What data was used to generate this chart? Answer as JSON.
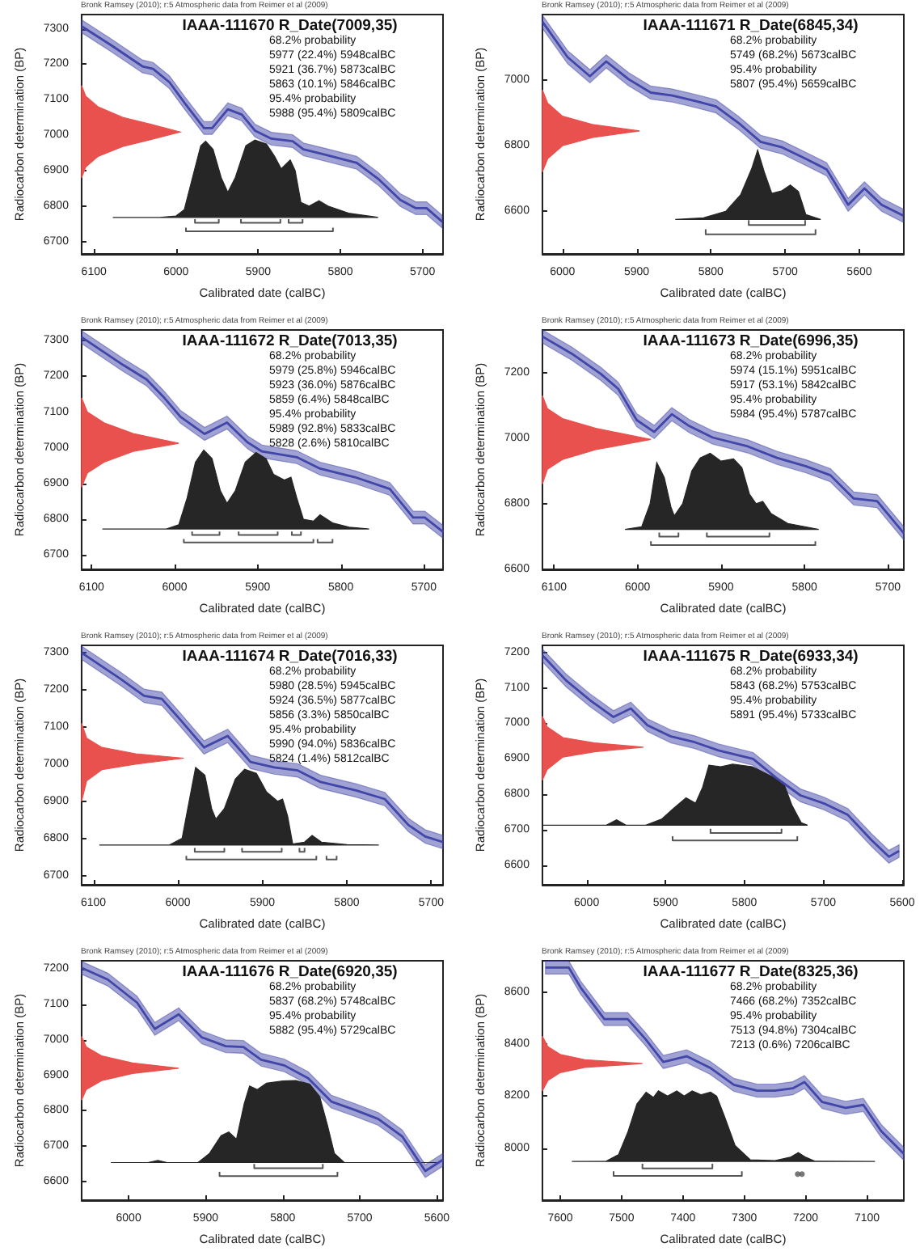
{
  "chart_data": [
    {
      "type": "line",
      "title": "IAAA-111670 R_Date(7009,35)",
      "subtitle": "Bronk Ramsey (2010); r:5 Atmospheric data from Reimer et al (2009)",
      "xlabel": "Calibrated date (calBC)",
      "ylabel": "Radiocarbon determination (BP)",
      "xlim": [
        6115,
        5675
      ],
      "ylim": [
        6665,
        7340
      ],
      "xticks": [
        6100,
        6000,
        5900,
        5800,
        5700
      ],
      "yticks": [
        6700,
        6800,
        6900,
        7000,
        7100,
        7200,
        7300
      ],
      "marker": "none",
      "annotations": [
        "68.2% probability",
        "5977 (22.4%) 5948calBC",
        "5921 (36.7%) 5873calBC",
        "5863 (10.1%) 5846calBC",
        "95.4% probability",
        "5988 (95.4%) 5809calBC"
      ],
      "series": [
        {
          "color": "#4146a8",
          "x": [
            6115,
            6080,
            6041,
            6028,
            6008,
            5989,
            5966,
            5956,
            5937,
            5920,
            5904,
            5884,
            5858,
            5845,
            5819,
            5780,
            5754,
            5727,
            5708,
            5695,
            5676
          ],
          "values": [
            7307,
            7255,
            7194,
            7187,
            7149,
            7089,
            7020,
            7020,
            7073,
            7058,
            7013,
            6990,
            6983,
            6960,
            6945,
            6922,
            6877,
            6817,
            6794,
            6794,
            6756
          ],
          "lower": [
            7289,
            7237,
            7176,
            7169,
            7131,
            7071,
            7002,
            7002,
            7055,
            7040,
            6995,
            6972,
            6965,
            6942,
            6927,
            6904,
            6859,
            6799,
            6776,
            6776,
            6738
          ],
          "upper": [
            7325,
            7273,
            7212,
            7205,
            7167,
            7107,
            7038,
            7038,
            7091,
            7076,
            7031,
            7008,
            7001,
            6978,
            6963,
            6940,
            6895,
            6835,
            6812,
            6812,
            6774
          ]
        },
        {
          "type": "area",
          "color": "#e8514e",
          "x": [
            6115,
            6110,
            6095,
            6065,
            6030,
            5995,
            6030,
            6065,
            6095,
            6110,
            6115
          ],
          "values": [
            7140,
            7110,
            7080,
            7050,
            7030,
            7009,
            6988,
            6968,
            6940,
            6910,
            6880
          ]
        },
        {
          "type": "area",
          "color": "#262626",
          "x": [
            6077,
            6020,
            6000,
            5990,
            5980,
            5970,
            5964,
            5955,
            5945,
            5937,
            5928,
            5915,
            5904,
            5890,
            5880,
            5872,
            5861,
            5855,
            5848,
            5838,
            5826,
            5815,
            5790,
            5760,
            5754
          ],
          "values": [
            6768,
            6768,
            6772,
            6790,
            6880,
            6970,
            6983,
            6960,
            6880,
            6839,
            6880,
            6970,
            6986,
            6975,
            6940,
            6905,
            6930,
            6900,
            6810,
            6800,
            6815,
            6800,
            6780,
            6770,
            6768
          ]
        },
        {
          "color": "#555555",
          "x": [
            5977,
            5977,
            5948,
            5948,
            5940,
            5921,
            5921,
            5873,
            5873,
            5868,
            5863,
            5863,
            5846,
            5846,
            5900,
            5988,
            5988,
            5809,
            5809
          ],
          "values": [
            6763,
            6753,
            6753,
            6763,
            null,
            6763,
            6753,
            6753,
            6763,
            null,
            6763,
            6753,
            6753,
            6763,
            null,
            6739,
            6729,
            6729,
            6739
          ]
        }
      ]
    },
    {
      "type": "line",
      "title": "IAAA-111671 R_Date(6845,34)",
      "subtitle": "Bronk Ramsey (2010); r:5 Atmospheric data from Reimer et al (2009)",
      "xlabel": "Calibrated date (calBC)",
      "ylabel": "Radiocarbon determination (BP)",
      "xlim": [
        6027,
        5540
      ],
      "ylim": [
        6470,
        7200
      ],
      "xticks": [
        6000,
        5900,
        5800,
        5700,
        5600
      ],
      "yticks": [
        6600,
        6800,
        7000
      ],
      "marker": "none",
      "annotations": [
        "68.2% probability",
        "5749 (68.2%) 5673calBC",
        "95.4% probability",
        "5807 (95.4%) 5659calBC"
      ],
      "series": [
        {
          "color": "#4146a8",
          "x": [
            6027,
            5993,
            5963,
            5941,
            5911,
            5881,
            5852,
            5822,
            5793,
            5763,
            5733,
            5704,
            5674,
            5644,
            5615,
            5593,
            5570,
            5541
          ],
          "values": [
            7178,
            7070,
            7012,
            7057,
            7003,
            6962,
            6953,
            6937,
            6920,
            6870,
            6812,
            6795,
            6762,
            6728,
            6620,
            6670,
            6620,
            6587
          ],
          "lower": [
            7158,
            7050,
            6992,
            7037,
            6983,
            6942,
            6933,
            6917,
            6900,
            6850,
            6792,
            6775,
            6742,
            6708,
            6600,
            6650,
            6600,
            6567
          ],
          "upper": [
            7198,
            7090,
            7032,
            7077,
            7023,
            6982,
            6973,
            6957,
            6940,
            6890,
            6832,
            6815,
            6782,
            6748,
            6640,
            6690,
            6640,
            6607
          ]
        },
        {
          "type": "area",
          "color": "#e8514e",
          "x": [
            6027,
            6020,
            6000,
            5960,
            5896,
            5960,
            6000,
            6020,
            6027
          ],
          "values": [
            6970,
            6930,
            6890,
            6865,
            6845,
            6825,
            6800,
            6760,
            6720
          ]
        },
        {
          "type": "area",
          "color": "#262626",
          "x": [
            5848,
            5810,
            5780,
            5760,
            5745,
            5737,
            5728,
            5718,
            5705,
            5693,
            5682,
            5672,
            5652
          ],
          "values": [
            6575,
            6580,
            6600,
            6650,
            6730,
            6787,
            6720,
            6655,
            6662,
            6680,
            6660,
            6590,
            6575
          ]
        },
        {
          "color": "#555555",
          "x": [
            5749,
            5749,
            5673,
            5673,
            5700,
            5807,
            5807,
            5659,
            5659
          ],
          "values": [
            6573,
            6558,
            6558,
            6573,
            null,
            6545,
            6530,
            6530,
            6545
          ]
        }
      ]
    },
    {
      "type": "line",
      "title": "IAAA-111672 R_Date(7013,35)",
      "subtitle": "Bronk Ramsey (2010); r:5 Atmospheric data from Reimer et al (2009)",
      "xlabel": "Calibrated date (calBC)",
      "ylabel": "Radiocarbon determination (BP)",
      "xlim": [
        6112,
        5677
      ],
      "ylim": [
        6660,
        7330
      ],
      "xticks": [
        6100,
        6000,
        5900,
        5800,
        5700
      ],
      "yticks": [
        6700,
        6800,
        6900,
        7000,
        7100,
        7200,
        7300
      ],
      "marker": "none",
      "annotations": [
        "68.2% probability",
        "5979 (25.8%) 5946calBC",
        "5923 (36.0%) 5876calBC",
        "5859 (6.4%) 5848calBC",
        "95.4% probability",
        "5989 (92.8%) 5833calBC",
        "5828 (2.6%) 5810calBC"
      ],
      "series": [
        {
          "color": "#4146a8",
          "x": [
            6112,
            6062,
            6034,
            6014,
            5993,
            5964,
            5937,
            5912,
            5895,
            5853,
            5825,
            5783,
            5741,
            5713,
            5699,
            5677
          ],
          "values": [
            7310,
            7232,
            7192,
            7144,
            7087,
            7039,
            7071,
            7015,
            6990,
            6974,
            6942,
            6918,
            6885,
            6805,
            6805,
            6765
          ],
          "lower": [
            7292,
            7214,
            7174,
            7126,
            7069,
            7021,
            7053,
            6997,
            6972,
            6956,
            6924,
            6900,
            6867,
            6787,
            6787,
            6747
          ],
          "upper": [
            7328,
            7250,
            7210,
            7162,
            7105,
            7057,
            7089,
            7033,
            7008,
            6992,
            6960,
            6936,
            6903,
            6823,
            6823,
            6783
          ]
        },
        {
          "type": "area",
          "color": "#e8514e",
          "x": [
            6112,
            6105,
            6085,
            6050,
            5995,
            6050,
            6085,
            6105,
            6112
          ],
          "values": [
            7140,
            7100,
            7070,
            7040,
            7013,
            6990,
            6960,
            6930,
            6890
          ]
        },
        {
          "type": "area",
          "color": "#262626",
          "x": [
            6087,
            6010,
            5995,
            5985,
            5975,
            5965,
            5955,
            5945,
            5937,
            5927,
            5915,
            5902,
            5890,
            5881,
            5868,
            5860,
            5853,
            5845,
            5833,
            5825,
            5810,
            5790,
            5766
          ],
          "values": [
            6773,
            6773,
            6785,
            6860,
            6960,
            6994,
            6970,
            6880,
            6845,
            6880,
            6960,
            6987,
            6970,
            6926,
            6910,
            6918,
            6860,
            6800,
            6795,
            6813,
            6790,
            6778,
            6773
          ]
        },
        {
          "color": "#555555",
          "x": [
            5979,
            5979,
            5946,
            5946,
            5930,
            5923,
            5923,
            5876,
            5876,
            5870,
            5859,
            5859,
            5848,
            5848,
            5900,
            5989,
            5989,
            5833,
            5833,
            5830,
            5828,
            5828,
            5810,
            5810
          ],
          "values": [
            6766,
            6756,
            6756,
            6766,
            null,
            6766,
            6756,
            6756,
            6766,
            null,
            6766,
            6756,
            6756,
            6766,
            null,
            6745,
            6735,
            6735,
            6745,
            null,
            6745,
            6735,
            6735,
            6745
          ]
        }
      ]
    },
    {
      "type": "line",
      "title": "IAAA-111673 R_Date(6996,35)",
      "subtitle": "Bronk Ramsey (2010); r:5 Atmospheric data from Reimer et al (2009)",
      "xlabel": "Calibrated date (calBC)",
      "ylabel": "Radiocarbon determination (BP)",
      "xlim": [
        6114,
        5681
      ],
      "ylim": [
        6600,
        7330
      ],
      "xticks": [
        6100,
        6000,
        5900,
        5800,
        5700
      ],
      "yticks": [
        6600,
        6800,
        7000,
        7200
      ],
      "marker": "none",
      "annotations": [
        "68.2% probability",
        "5974 (15.1%) 5951calBC",
        "5917 (53.1%) 5842calBC",
        "95.4% probability",
        "5984 (95.4%) 5787calBC"
      ],
      "series": [
        {
          "color": "#4146a8",
          "x": [
            6114,
            6079,
            6044,
            6023,
            6001,
            5980,
            5959,
            5938,
            5910,
            5868,
            5833,
            5798,
            5769,
            5741,
            5713,
            5681
          ],
          "values": [
            7310,
            7258,
            7196,
            7150,
            7055,
            7019,
            7073,
            7037,
            7002,
            6975,
            6940,
            6914,
            6887,
            6816,
            6808,
            6710
          ],
          "lower": [
            7290,
            7238,
            7176,
            7130,
            7035,
            6999,
            7053,
            7017,
            6982,
            6955,
            6920,
            6894,
            6867,
            6796,
            6788,
            6690
          ],
          "upper": [
            7330,
            7278,
            7216,
            7170,
            7075,
            7039,
            7093,
            7057,
            7022,
            6995,
            6960,
            6934,
            6907,
            6836,
            6828,
            6730
          ]
        },
        {
          "type": "area",
          "color": "#e8514e",
          "x": [
            6114,
            6108,
            6090,
            6050,
            5984,
            6050,
            6090,
            6108,
            6114
          ],
          "values": [
            7130,
            7090,
            7060,
            7030,
            6996,
            6965,
            6935,
            6905,
            6860
          ]
        },
        {
          "type": "area",
          "color": "#262626",
          "x": [
            6015,
            5995,
            5985,
            5977,
            5968,
            5960,
            5956,
            5946,
            5935,
            5925,
            5913,
            5900,
            5885,
            5875,
            5866,
            5858,
            5850,
            5840,
            5820,
            5783
          ],
          "values": [
            6722,
            6730,
            6800,
            6926,
            6880,
            6790,
            6763,
            6800,
            6900,
            6940,
            6954,
            6930,
            6937,
            6910,
            6830,
            6800,
            6807,
            6770,
            6740,
            6722
          ]
        },
        {
          "color": "#555555",
          "x": [
            5974,
            5974,
            5951,
            5951,
            5930,
            5917,
            5917,
            5842,
            5842,
            5850,
            5984,
            5984,
            5787,
            5787
          ],
          "values": [
            6712,
            6700,
            6700,
            6712,
            null,
            6712,
            6700,
            6700,
            6712,
            null,
            6686,
            6674,
            6674,
            6686
          ]
        }
      ]
    },
    {
      "type": "line",
      "title": "IAAA-111674 R_Date(7016,33)",
      "subtitle": "Bronk Ramsey (2010); r:5 Atmospheric data from Reimer et al (2009)",
      "xlabel": "Calibrated date (calBC)",
      "ylabel": "Radiocarbon determination (BP)",
      "xlim": [
        6114,
        5686
      ],
      "ylim": [
        6675,
        7320
      ],
      "xticks": [
        6100,
        6000,
        5900,
        5800,
        5700
      ],
      "yticks": [
        6700,
        6800,
        6900,
        7000,
        7100,
        7200,
        7300
      ],
      "marker": "none",
      "annotations": [
        "68.2% probability",
        "5980 (28.5%) 5945calBC",
        "5924 (36.5%) 5877calBC",
        "5856 (3.3%) 5850calBC",
        "95.4% probability",
        "5990 (94.0%) 5836calBC",
        "5824 (1.4%) 5812calBC"
      ],
      "series": [
        {
          "color": "#4146a8",
          "x": [
            6114,
            6068,
            6040,
            6019,
            5998,
            5969,
            5941,
            5914,
            5886,
            5858,
            5831,
            5789,
            5755,
            5727,
            5707,
            5686
          ],
          "values": [
            7300,
            7230,
            7184,
            7176,
            7122,
            7045,
            7076,
            7006,
            6991,
            6983,
            6952,
            6929,
            6906,
            6836,
            6805,
            6790
          ],
          "lower": [
            7282,
            7212,
            7166,
            7158,
            7104,
            7027,
            7058,
            6988,
            6973,
            6965,
            6934,
            6911,
            6888,
            6818,
            6787,
            6772
          ],
          "upper": [
            7318,
            7248,
            7202,
            7194,
            7140,
            7063,
            7094,
            7024,
            7009,
            7001,
            6970,
            6947,
            6924,
            6854,
            6823,
            6808
          ]
        },
        {
          "type": "area",
          "color": "#e8514e",
          "x": [
            6114,
            6108,
            6090,
            6050,
            5993,
            6050,
            6090,
            6108,
            6114
          ],
          "values": [
            7110,
            7070,
            7045,
            7028,
            7016,
            7000,
            6985,
            6955,
            6900
          ]
        },
        {
          "type": "area",
          "color": "#262626",
          "x": [
            6093,
            6010,
            5995,
            5985,
            5979,
            5968,
            5960,
            5955,
            5945,
            5932,
            5921,
            5907,
            5895,
            5882,
            5876,
            5870,
            5864,
            5850,
            5841,
            5830,
            5800,
            5762
          ],
          "values": [
            6782,
            6782,
            6800,
            6920,
            6991,
            6970,
            6880,
            6852,
            6880,
            6960,
            6986,
            6975,
            6925,
            6900,
            6906,
            6860,
            6785,
            6790,
            6808,
            6790,
            6783,
            6782
          ]
        },
        {
          "color": "#555555",
          "x": [
            5980,
            5980,
            5945,
            5945,
            5930,
            5924,
            5924,
            5877,
            5877,
            5900,
            5990,
            5990,
            5836,
            5836,
            5830,
            5824,
            5824,
            5812,
            5812
          ],
          "values": [
            6774,
            6764,
            6764,
            6774,
            null,
            6774,
            6764,
            6764,
            6774,
            null,
            6753,
            6743,
            6743,
            6753,
            null,
            6753,
            6743,
            6743,
            6753
          ]
        },
        {
          "color": "#555555",
          "x": [
            5856,
            5856,
            5850,
            5850
          ],
          "values": [
            6774,
            6764,
            6764,
            6774
          ]
        }
      ]
    },
    {
      "type": "line",
      "title": "IAAA-111675 R_Date(6933,34)",
      "subtitle": "Bronk Ramsey (2010); r:5 Atmospheric data from Reimer et al (2009)",
      "xlabel": "Calibrated date (calBC)",
      "ylabel": "Radiocarbon determination (BP)",
      "xlim": [
        6056,
        5598
      ],
      "ylim": [
        6545,
        7220
      ],
      "xticks": [
        6000,
        5900,
        5800,
        5700,
        5600
      ],
      "yticks": [
        6600,
        6700,
        6800,
        6900,
        7000,
        7100,
        7200
      ],
      "marker": "none",
      "annotations": [
        "68.2% probability",
        "5843 (68.2%) 5753calBC",
        "95.4% probability",
        "5891 (95.4%) 5733calBC"
      ],
      "series": [
        {
          "color": "#4146a8",
          "x": [
            6056,
            6026,
            5996,
            5966,
            5944,
            5923,
            5893,
            5863,
            5833,
            5789,
            5759,
            5729,
            5699,
            5669,
            5639,
            5617,
            5604
          ],
          "values": [
            7192,
            7121,
            7066,
            7018,
            7042,
            6995,
            6963,
            6947,
            6924,
            6900,
            6845,
            6797,
            6774,
            6742,
            6671,
            6624,
            6640
          ],
          "lower": [
            7174,
            7103,
            7048,
            7000,
            7024,
            6977,
            6945,
            6929,
            6906,
            6882,
            6827,
            6779,
            6756,
            6724,
            6653,
            6606,
            6622
          ],
          "upper": [
            7210,
            7139,
            7084,
            7036,
            7060,
            7013,
            6981,
            6965,
            6942,
            6918,
            6863,
            6815,
            6792,
            6760,
            6689,
            6642,
            6658
          ]
        },
        {
          "type": "area",
          "color": "#e8514e",
          "x": [
            6056,
            6050,
            6030,
            5990,
            5928,
            5990,
            6030,
            6050,
            6056
          ],
          "values": [
            7020,
            6990,
            6960,
            6945,
            6933,
            6920,
            6905,
            6870,
            6840
          ]
        },
        {
          "type": "area",
          "color": "#262626",
          "x": [
            6056,
            5975,
            5962,
            5950,
            5925,
            5905,
            5890,
            5874,
            5862,
            5853,
            5845,
            5830,
            5815,
            5790,
            5765,
            5750,
            5740,
            5728,
            5720
          ],
          "values": [
            6713,
            6713,
            6728,
            6713,
            6713,
            6730,
            6760,
            6790,
            6775,
            6820,
            6882,
            6878,
            6885,
            6878,
            6850,
            6830,
            6770,
            6720,
            6713
          ]
        },
        {
          "color": "#555555",
          "x": [
            5843,
            5843,
            5753,
            5753,
            5800,
            5891,
            5891,
            5733,
            5733
          ],
          "values": [
            6703,
            6691,
            6691,
            6703,
            null,
            6682,
            6670,
            6670,
            6682
          ]
        }
      ]
    },
    {
      "type": "line",
      "title": "IAAA-111676 R_Date(6920,35)",
      "subtitle": "Bronk Ramsey (2010); r:5 Atmospheric data from Reimer et al (2009)",
      "xlabel": "Calibrated date (calBC)",
      "ylabel": "Radiocarbon determination (BP)",
      "xlim": [
        6061,
        5592
      ],
      "ylim": [
        6548,
        7223
      ],
      "xticks": [
        6000,
        5900,
        5800,
        5700,
        5600
      ],
      "yticks": [
        6600,
        6700,
        6800,
        6900,
        7000,
        7100,
        7200
      ],
      "marker": "none",
      "annotations": [
        "68.2% probability",
        "5837 (68.2%) 5748calBC",
        "95.4% probability",
        "5882 (95.4%) 5729calBC"
      ],
      "series": [
        {
          "color": "#4146a8",
          "x": [
            6061,
            6027,
            5989,
            5966,
            5935,
            5905,
            5874,
            5851,
            5828,
            5798,
            5767,
            5737,
            5706,
            5676,
            5645,
            5615,
            5592
          ],
          "values": [
            7203,
            7170,
            7105,
            7031,
            7072,
            7007,
            6982,
            6980,
            6944,
            6928,
            6892,
            6826,
            6802,
            6777,
            6728,
            6630,
            6662
          ],
          "lower": [
            7185,
            7152,
            7087,
            7013,
            7054,
            6989,
            6964,
            6962,
            6926,
            6910,
            6874,
            6808,
            6784,
            6759,
            6710,
            6612,
            6644
          ],
          "upper": [
            7221,
            7188,
            7123,
            7049,
            7090,
            7025,
            7000,
            6998,
            6962,
            6946,
            6910,
            6844,
            6820,
            6795,
            6746,
            6648,
            6680
          ]
        },
        {
          "type": "area",
          "color": "#e8514e",
          "x": [
            6061,
            6055,
            6035,
            5995,
            5935,
            5995,
            6035,
            6055,
            6061
          ],
          "values": [
            7010,
            6980,
            6955,
            6935,
            6920,
            6905,
            6885,
            6860,
            6830
          ]
        },
        {
          "type": "area",
          "color": "#262626",
          "x": [
            6023,
            5975,
            5962,
            5950,
            5910,
            5895,
            5880,
            5870,
            5860,
            5850,
            5843,
            5833,
            5821,
            5800,
            5783,
            5765,
            5752,
            5742,
            5733,
            5720,
            5600
          ],
          "values": [
            6654,
            6654,
            6660,
            6654,
            6654,
            6680,
            6730,
            6740,
            6720,
            6820,
            6870,
            6860,
            6878,
            6884,
            6885,
            6875,
            6840,
            6760,
            6680,
            6654,
            6654
          ]
        },
        {
          "color": "#555555",
          "x": [
            5837,
            5837,
            5748,
            5748,
            5800,
            5882,
            5882,
            5729,
            5729
          ],
          "values": [
            6650,
            6638,
            6638,
            6650,
            null,
            6628,
            6616,
            6616,
            6628
          ]
        }
      ]
    },
    {
      "type": "line",
      "title": "IAAA-111677 R_Date(8325,36)",
      "subtitle": "Bronk Ramsey (2010); r:5 Atmospheric data from Reimer et al (2009)",
      "xlabel": "Calibrated date (calBC)",
      "ylabel": "Radiocarbon determination (BP)",
      "xlim": [
        7629,
        7040
      ],
      "ylim": [
        7800,
        8720
      ],
      "xticks": [
        7600,
        7500,
        7400,
        7300,
        7200,
        7100
      ],
      "yticks": [
        8000,
        8200,
        8400,
        8600
      ],
      "marker": "none",
      "annotations": [
        "68.2% probability",
        "7466 (68.2%) 7352calBC",
        "95.4% probability",
        "7513 (94.8%) 7304calBC",
        "7213 (0.6%) 7206calBC"
      ],
      "series": [
        {
          "color": "#4146a8",
          "x": [
            7624,
            7586,
            7567,
            7528,
            7490,
            7461,
            7432,
            7394,
            7356,
            7317,
            7279,
            7250,
            7221,
            7202,
            7173,
            7135,
            7106,
            7077,
            7040
          ],
          "values": [
            8694,
            8694,
            8618,
            8496,
            8496,
            8419,
            8331,
            8353,
            8309,
            8243,
            8221,
            8221,
            8230,
            8254,
            8177,
            8155,
            8166,
            8066,
            7978
          ],
          "lower": [
            8669,
            8669,
            8593,
            8471,
            8471,
            8394,
            8306,
            8328,
            8284,
            8218,
            8196,
            8196,
            8205,
            8229,
            8152,
            8130,
            8141,
            8041,
            7953
          ],
          "upper": [
            8719,
            8719,
            8643,
            8521,
            8521,
            8444,
            8356,
            8378,
            8334,
            8268,
            8246,
            8246,
            8255,
            8279,
            8202,
            8180,
            8191,
            8091,
            8003
          ]
        },
        {
          "type": "area",
          "color": "#e8514e",
          "x": [
            7629,
            7620,
            7600,
            7560,
            7466,
            7560,
            7600,
            7620,
            7629
          ],
          "values": [
            8430,
            8390,
            8360,
            8340,
            8325,
            8310,
            8290,
            8260,
            8220
          ]
        },
        {
          "type": "area",
          "color": "#262626",
          "x": [
            7581,
            7525,
            7505,
            7490,
            7475,
            7460,
            7448,
            7440,
            7425,
            7410,
            7398,
            7385,
            7370,
            7355,
            7345,
            7332,
            7315,
            7290,
            7250,
            7225,
            7212,
            7200,
            7185,
            7087
          ],
          "values": [
            7949,
            7950,
            7975,
            8060,
            8170,
            8215,
            8195,
            8220,
            8200,
            8220,
            8200,
            8220,
            8205,
            8215,
            8200,
            8120,
            8010,
            7955,
            7952,
            7965,
            7983,
            7965,
            7950,
            7949
          ]
        },
        {
          "color": "#555555",
          "x": [
            7466,
            7466,
            7352,
            7352,
            7400,
            7513,
            7513,
            7304,
            7304
          ],
          "values": [
            7940,
            7922,
            7922,
            7940,
            null,
            7911,
            7893,
            7893,
            7911
          ]
        },
        {
          "type": "scatter",
          "color": "#555555",
          "x": [
            7213,
            7206
          ],
          "values": [
            7900,
            7900
          ]
        }
      ]
    }
  ]
}
